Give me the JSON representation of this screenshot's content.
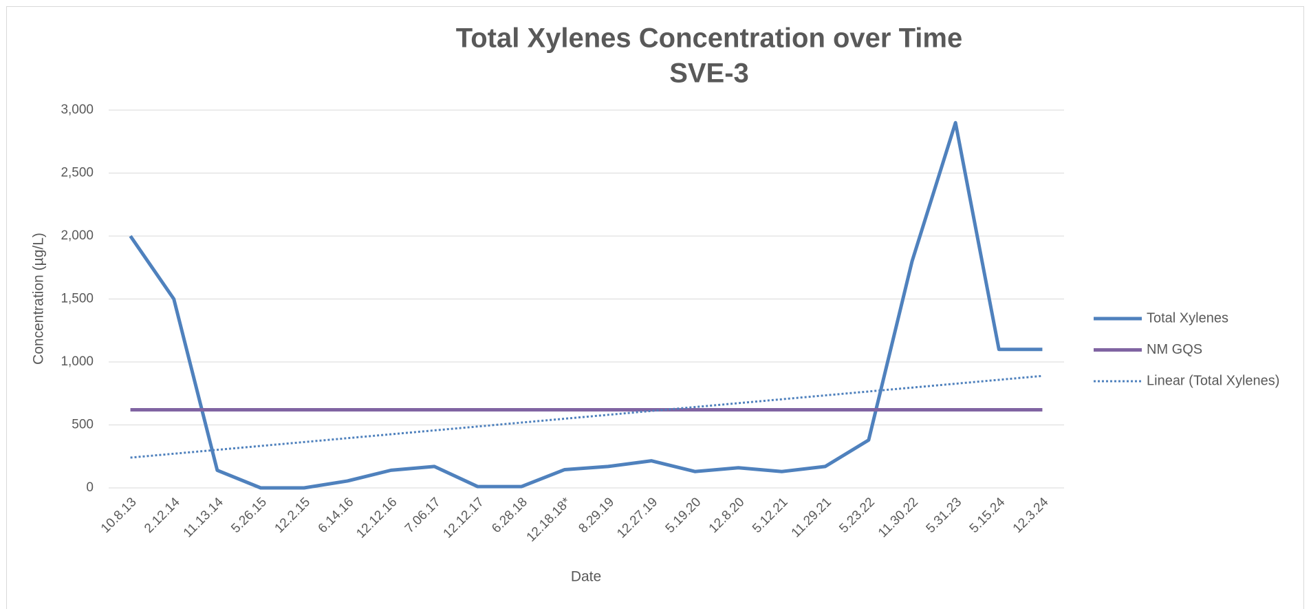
{
  "chart_data": {
    "type": "line",
    "title": [
      "Total Xylenes Concentration over Time",
      "SVE-3"
    ],
    "x_label": "Date",
    "y_label": "Concentration (µg/L)",
    "categories": [
      "10.8.13",
      "2.12.14",
      "11.13.14",
      "5.26.15",
      "12.2.15",
      "6.14.16",
      "12.12.16",
      "7.06.17",
      "12.12.17",
      "6.28.18",
      "12.18.18*",
      "8.29.19",
      "12.27.19",
      "5.19.20",
      "12.8.20",
      "5.12.21",
      "11.29.21",
      "5.23.22",
      "11.30.22",
      "5.31.23",
      "5.15.24",
      "12.3.24"
    ],
    "series": [
      {
        "name": "Total Xylenes",
        "color": "#4f81bd",
        "values": [
          2000,
          1500,
          140,
          0,
          0,
          55,
          140,
          170,
          10,
          10,
          145,
          170,
          215,
          130,
          160,
          130,
          170,
          380,
          1800,
          2900,
          1100,
          1100
        ]
      },
      {
        "name": "NM GQS",
        "color": "#8064a2",
        "values": [
          620,
          620,
          620,
          620,
          620,
          620,
          620,
          620,
          620,
          620,
          620,
          620,
          620,
          620,
          620,
          620,
          620,
          620,
          620,
          620,
          620,
          620
        ]
      }
    ],
    "trendline": {
      "name": "Linear (Total Xylenes)",
      "of": 0,
      "kind": "linear",
      "color": "#4f81bd",
      "style": "dotted"
    },
    "ylim": [
      0,
      3000
    ],
    "yticks": [
      0,
      500,
      {
        "value": 1000,
        "label": "1,000"
      },
      {
        "value": 1500,
        "label": "1,500"
      },
      {
        "value": 2000,
        "label": "2,000"
      },
      {
        "value": 2500,
        "label": "2,500"
      },
      {
        "value": 3000,
        "label": "3,000"
      }
    ],
    "grid": true,
    "legend": "right"
  }
}
